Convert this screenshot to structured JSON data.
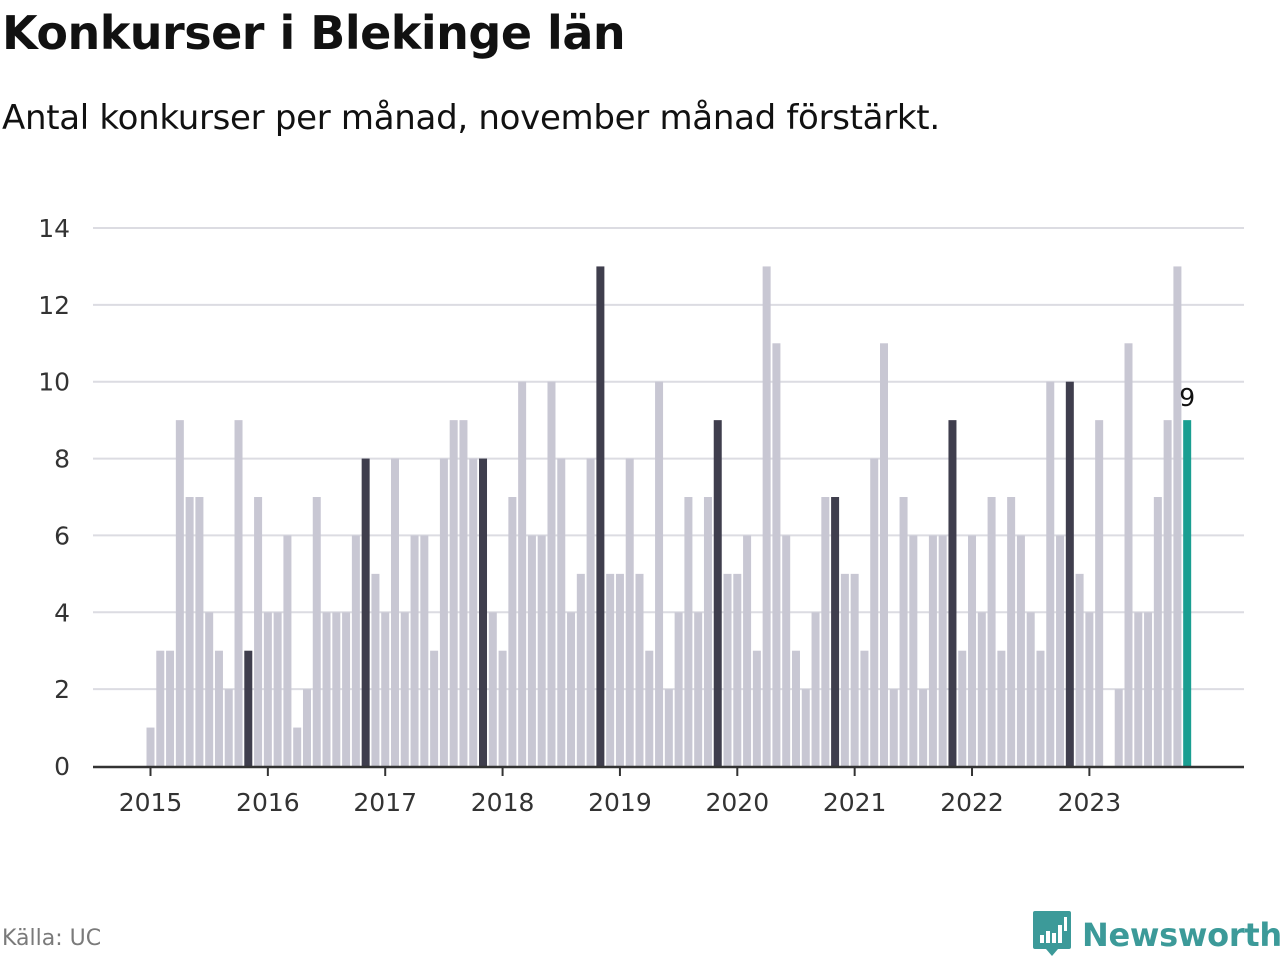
{
  "header": {
    "title": "Konkurser i Blekinge län",
    "subtitle": "Antal konkurser per månad, november månad förstärkt."
  },
  "footer": {
    "source": "Källa: UC",
    "brand": "Newsworthy",
    "brand_icon": "bar-chart-speech-bubble-icon"
  },
  "colors": {
    "base": "#c8c7d3",
    "november": "#3f3e4d",
    "latest": "#1a9e91",
    "grid": "#dcdce2",
    "axis": "#333333",
    "brand": "#3c9a99"
  },
  "chart_data": {
    "type": "bar",
    "title": "Konkurser i Blekinge län",
    "subtitle": "Antal konkurser per månad, november månad förstärkt.",
    "xlabel": "",
    "ylabel": "",
    "ylim": [
      0,
      14
    ],
    "yticks": [
      0,
      2,
      4,
      6,
      8,
      10,
      12,
      14
    ],
    "xticks": [
      "2015",
      "2016",
      "2017",
      "2018",
      "2019",
      "2020",
      "2021",
      "2022",
      "2023"
    ],
    "grid": true,
    "start_month": "2015-01",
    "highlight": "november",
    "latest_label": "9",
    "series": [
      {
        "year": "2015",
        "values": [
          1,
          3,
          3,
          9,
          7,
          7,
          4,
          3,
          2,
          9,
          3,
          7
        ]
      },
      {
        "year": "2016",
        "values": [
          4,
          4,
          6,
          1,
          2,
          7,
          4,
          4,
          4,
          6,
          8,
          5
        ]
      },
      {
        "year": "2017",
        "values": [
          4,
          8,
          4,
          6,
          6,
          3,
          8,
          9,
          9,
          8,
          8,
          4
        ]
      },
      {
        "year": "2018",
        "values": [
          3,
          7,
          10,
          6,
          6,
          10,
          8,
          4,
          5,
          8,
          13,
          5
        ]
      },
      {
        "year": "2019",
        "values": [
          5,
          8,
          5,
          3,
          10,
          2,
          4,
          7,
          4,
          7,
          9,
          5
        ]
      },
      {
        "year": "2020",
        "values": [
          5,
          6,
          3,
          13,
          11,
          6,
          3,
          2,
          4,
          7,
          7,
          5
        ]
      },
      {
        "year": "2021",
        "values": [
          5,
          3,
          8,
          11,
          2,
          7,
          6,
          2,
          6,
          6,
          9,
          3
        ]
      },
      {
        "year": "2022",
        "values": [
          6,
          4,
          7,
          3,
          7,
          6,
          4,
          3,
          10,
          6,
          10,
          5
        ]
      },
      {
        "year": "2023",
        "values": [
          4,
          9,
          0,
          2,
          11,
          4,
          4,
          7,
          9,
          13,
          9
        ]
      }
    ]
  }
}
